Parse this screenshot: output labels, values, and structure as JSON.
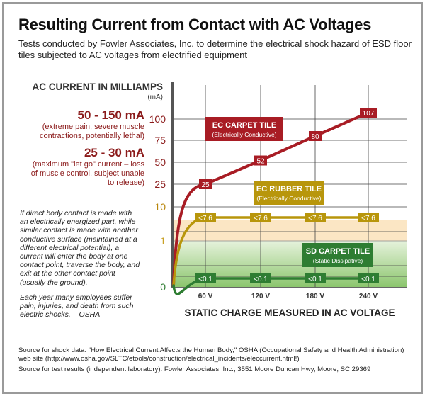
{
  "title": "Resulting Current from Contact with AC Voltages",
  "subtitle": "Tests conducted by Fowler Associates, Inc. to determine the electrical shock hazard of ESD floor tiles subjected to AC voltages from electrified equipment",
  "left_panel": {
    "band1_heading": "50 - 150 mA",
    "band1_desc": "(extreme pain, severe muscle contractions, potentially lethal)",
    "band2_heading": "25 - 30 mA",
    "band2_desc": "(maximum \"let go\" current – loss of muscle control, subject unable to release)",
    "note1": "If direct body contact is made with an electrically energized part, while similar contact is made with another conductive surface (maintained at a different electrical potential), a current will enter the body at one contact point, traverse the body, and exit at the other contact point (usually the ground).",
    "note2": "Each year many employees suffer pain, injuries, and death from such electric shocks. – OSHA"
  },
  "sources": {
    "shock": "Source for shock data: \"How Electrical Current Affects the Human Body,\" OSHA (Occupational Safety and Health Administration) web site (http://www.osha.gov/SLTC/etools/construction/electrical_incidents/eleccurrent.html!)",
    "test": "Source for test results (independent laboratory): Fowler Associates, Inc., 3551 Moore Duncan Hwy, Moore, SC 29369"
  },
  "chart_data": {
    "type": "line",
    "title": "Resulting Current from Contact with AC Voltages",
    "ylabel": "AC CURRENT IN MILLIAMPS",
    "yunit": "(mA)",
    "xlabel": "STATIC CHARGE MEASURED IN AC VOLTAGE",
    "x_categories": [
      "60 V",
      "120 V",
      "180 V",
      "240 V"
    ],
    "x_values": [
      60,
      120,
      180,
      240
    ],
    "y_ticks": [
      {
        "label": "100",
        "value": 100,
        "color": "#8b1a1a"
      },
      {
        "label": "75",
        "value": 75,
        "color": "#8b1a1a"
      },
      {
        "label": "50",
        "value": 50,
        "color": "#8b1a1a"
      },
      {
        "label": "25",
        "value": 25,
        "color": "#8b1a1a"
      },
      {
        "label": "10",
        "value": 10,
        "color": "#b8860b"
      },
      {
        "label": "1",
        "value": 1,
        "color": "#c9a227"
      },
      {
        "label": "0",
        "value": 0,
        "color": "#2e7d32"
      }
    ],
    "y_scale": "non-linear (compressed below 10)",
    "grid": true,
    "series": [
      {
        "name": "EC CARPET TILE",
        "subname": "(Electrically Conductive)",
        "color": "#a81c24",
        "values": [
          25,
          52,
          80,
          107
        ],
        "labels": [
          "25",
          "52",
          "80",
          "107"
        ]
      },
      {
        "name": "EC RUBBER TILE",
        "subname": "(Electrically Conductive)",
        "color": "#b8960c",
        "values": [
          7.6,
          7.6,
          7.6,
          7.6
        ],
        "labels": [
          "<7.6",
          "<7.6",
          "<7.6",
          "<7.6"
        ]
      },
      {
        "name": "SD CARPET TILE",
        "subname": "(Static Dissipative)",
        "color": "#2e7d32",
        "values": [
          0.1,
          0.1,
          0.1,
          0.1
        ],
        "labels": [
          "<0.1",
          "<0.1",
          "<0.1",
          "<0.1"
        ]
      }
    ]
  }
}
